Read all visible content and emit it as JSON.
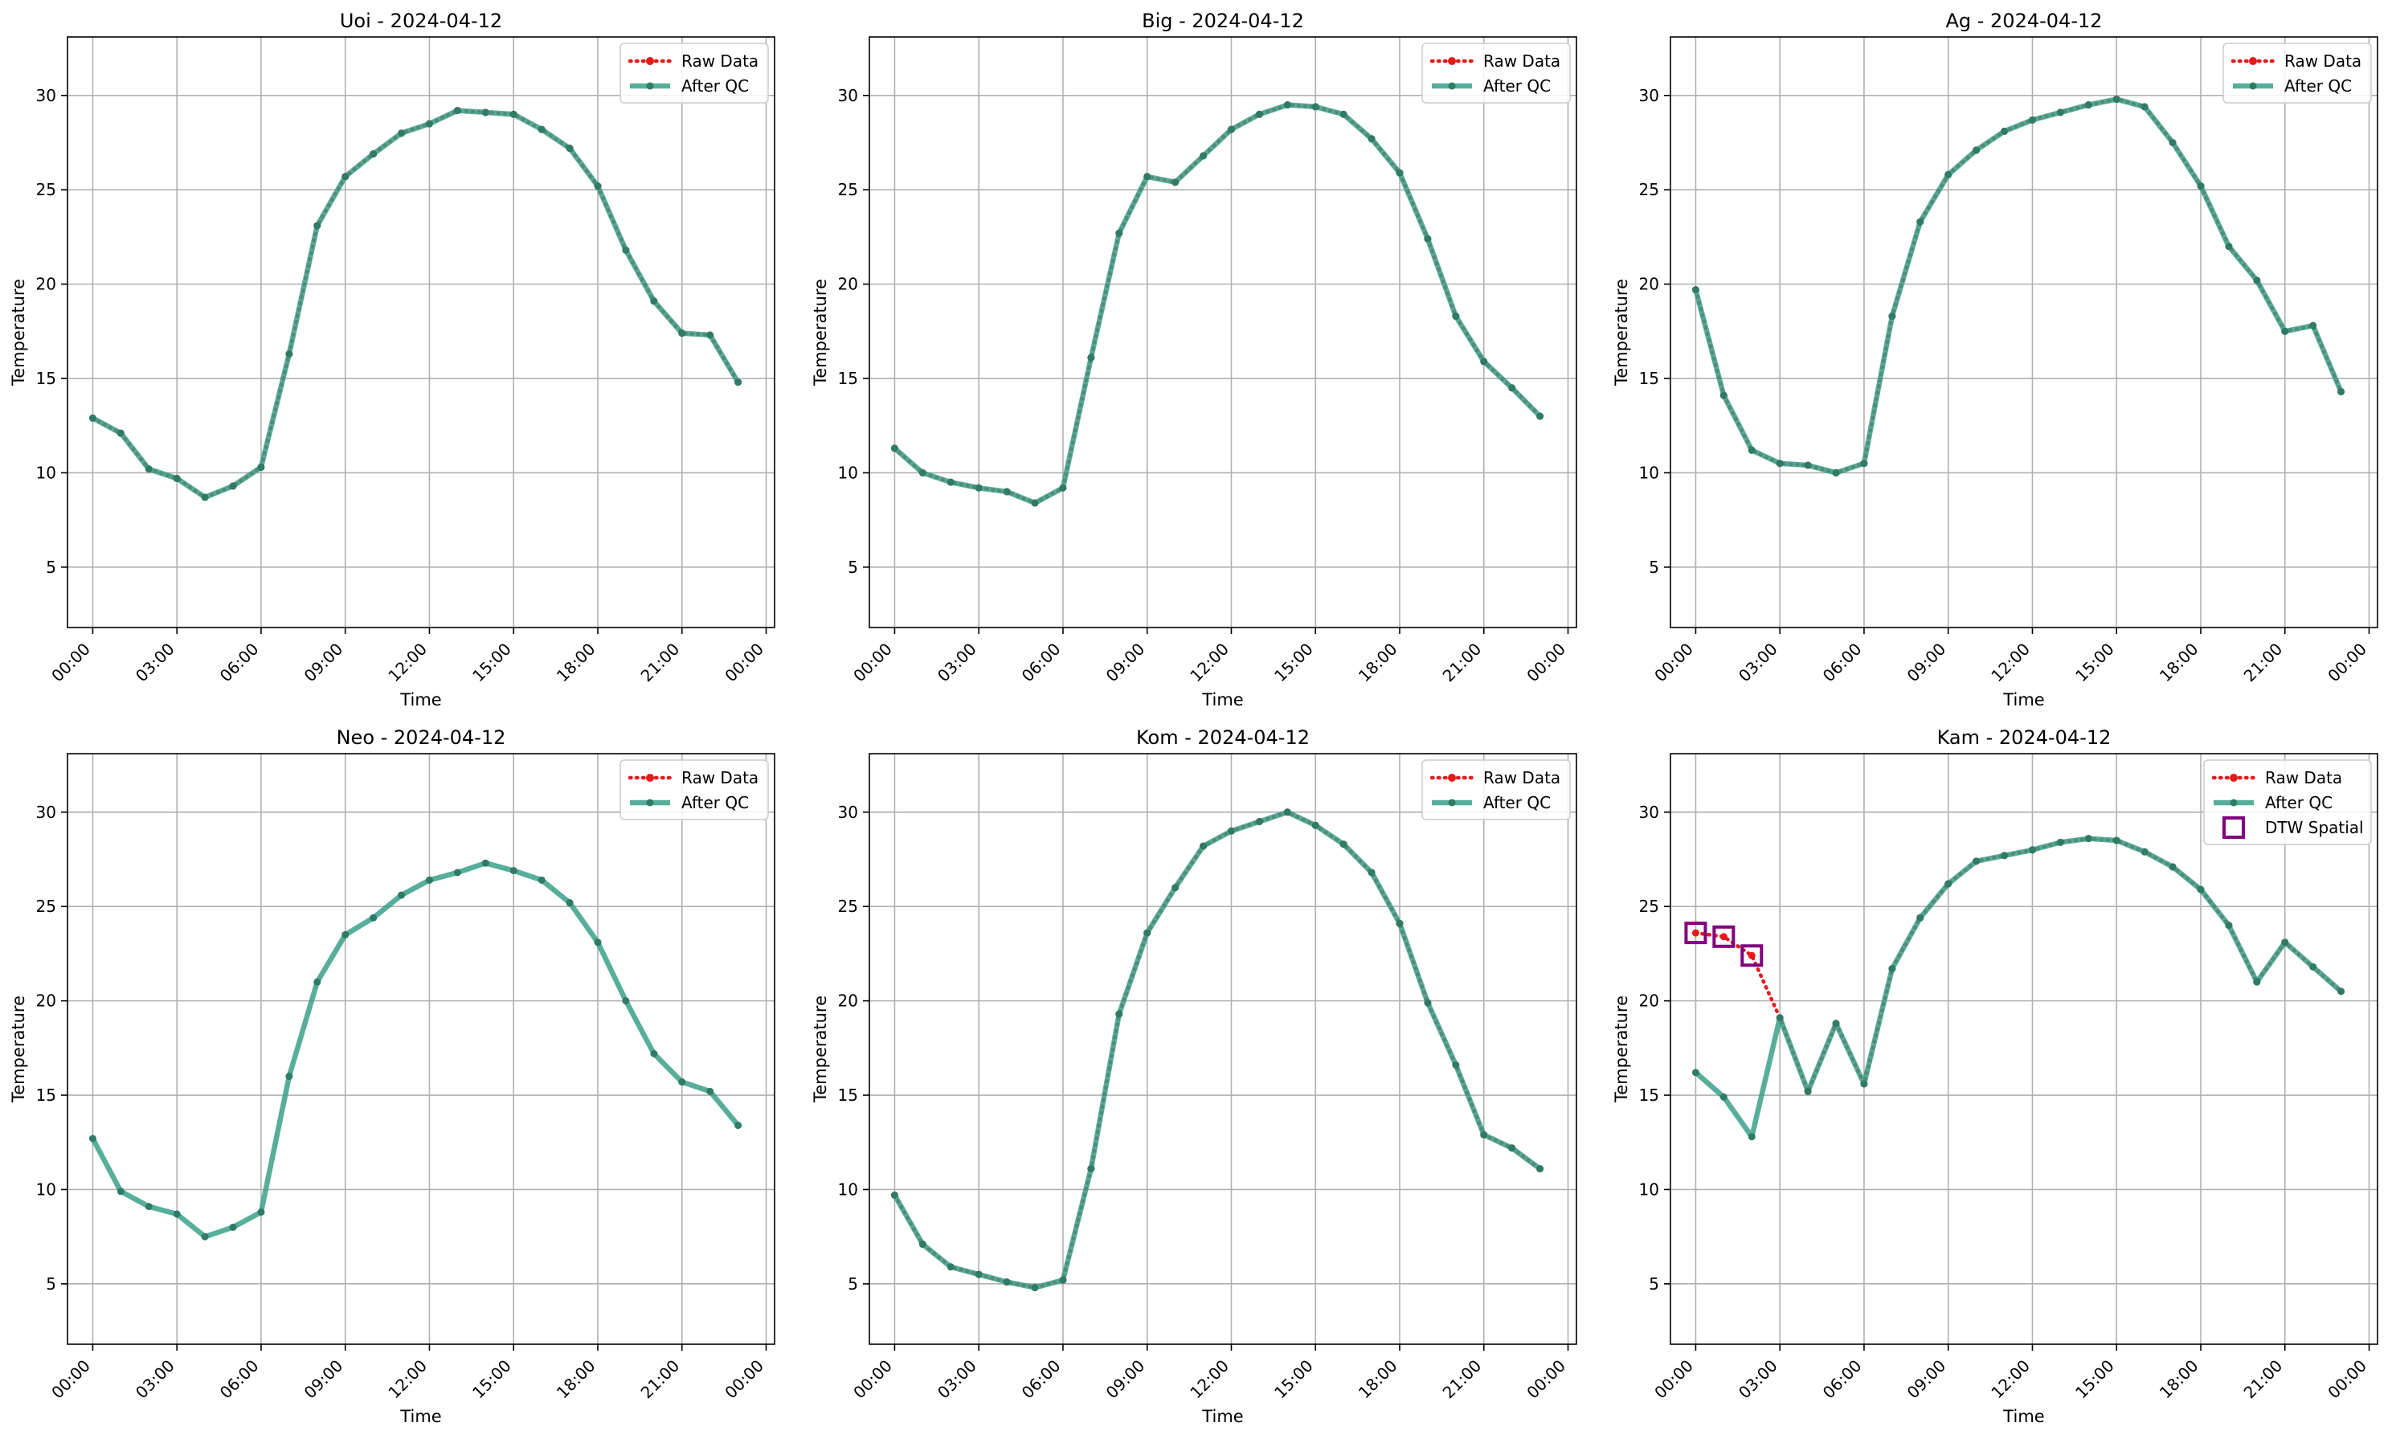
{
  "figure": {
    "x_tick_labels": [
      "00:00",
      "03:00",
      "06:00",
      "09:00",
      "12:00",
      "15:00",
      "18:00",
      "21:00",
      "00:00"
    ],
    "y_tick_labels": [
      "5",
      "10",
      "15",
      "20",
      "25",
      "30"
    ],
    "colors": {
      "raw": "#e41a1c",
      "qc": "#3aa08a",
      "qc_marker": "#2e7b66",
      "dtw": "#800080",
      "grid": "#b0b0b0"
    }
  },
  "chart_data": [
    {
      "type": "line",
      "title": "Uoi - 2024-04-12",
      "xlabel": "Time",
      "ylabel": "Temperature",
      "xlim": [
        "2024-04-11T23:06",
        "2024-04-13T00:18"
      ],
      "ylim": [
        1.8,
        33.1
      ],
      "x_hours": [
        0,
        1,
        2,
        3,
        4,
        5,
        6,
        7,
        8,
        9,
        10,
        11,
        12,
        13,
        14,
        15,
        16,
        17,
        18,
        19,
        20,
        21,
        22,
        23
      ],
      "grid": true,
      "legend": "top-right",
      "legend_entries": [
        "Raw Data",
        "After QC"
      ],
      "series": [
        {
          "name": "Raw Data",
          "style": "dotted",
          "values": [
            12.9,
            12.1,
            10.2,
            9.7,
            8.7,
            9.3,
            10.3,
            16.3,
            23.1,
            25.7,
            26.9,
            28.0,
            28.5,
            29.2,
            29.1,
            29.0,
            28.2,
            27.2,
            25.2,
            21.8,
            19.1,
            17.4,
            17.3,
            14.8
          ]
        },
        {
          "name": "After QC",
          "style": "solid",
          "values": [
            12.9,
            12.1,
            10.2,
            9.7,
            8.7,
            9.3,
            10.3,
            16.3,
            23.1,
            25.7,
            26.9,
            28.0,
            28.5,
            29.2,
            29.1,
            29.0,
            28.2,
            27.2,
            25.2,
            21.8,
            19.1,
            17.4,
            17.3,
            14.8
          ]
        }
      ],
      "dtw_points": []
    },
    {
      "type": "line",
      "title": "Big - 2024-04-12",
      "xlabel": "Time",
      "ylabel": "Temperature",
      "xlim": [
        "2024-04-11T23:06",
        "2024-04-13T00:18"
      ],
      "ylim": [
        1.8,
        33.1
      ],
      "x_hours": [
        0,
        1,
        2,
        3,
        4,
        5,
        6,
        7,
        8,
        9,
        10,
        11,
        12,
        13,
        14,
        15,
        16,
        17,
        18,
        19,
        20,
        21,
        22,
        23
      ],
      "grid": true,
      "legend": "top-right",
      "legend_entries": [
        "Raw Data",
        "After QC"
      ],
      "series": [
        {
          "name": "Raw Data",
          "style": "dotted",
          "values": [
            11.3,
            10.0,
            9.5,
            9.2,
            9.0,
            8.4,
            9.2,
            16.1,
            22.7,
            25.7,
            25.4,
            26.8,
            28.2,
            29.0,
            29.5,
            29.4,
            29.0,
            27.7,
            25.9,
            22.4,
            18.3,
            15.9,
            14.5,
            13.0
          ]
        },
        {
          "name": "After QC",
          "style": "solid",
          "values": [
            11.3,
            10.0,
            9.5,
            9.2,
            9.0,
            8.4,
            9.2,
            16.1,
            22.7,
            25.7,
            25.4,
            26.8,
            28.2,
            29.0,
            29.5,
            29.4,
            29.0,
            27.7,
            25.9,
            22.4,
            18.3,
            15.9,
            14.5,
            13.0
          ]
        }
      ],
      "dtw_points": []
    },
    {
      "type": "line",
      "title": "Ag - 2024-04-12",
      "xlabel": "Time",
      "ylabel": "Temperature",
      "xlim": [
        "2024-04-11T23:06",
        "2024-04-13T00:18"
      ],
      "ylim": [
        1.8,
        33.1
      ],
      "x_hours": [
        0,
        1,
        2,
        3,
        4,
        5,
        6,
        7,
        8,
        9,
        10,
        11,
        12,
        13,
        14,
        15,
        16,
        17,
        18,
        19,
        20,
        21,
        22,
        23
      ],
      "grid": true,
      "legend": "top-right",
      "legend_entries": [
        "Raw Data",
        "After QC"
      ],
      "series": [
        {
          "name": "Raw Data",
          "style": "dotted",
          "values": [
            19.7,
            14.1,
            11.2,
            10.5,
            10.4,
            10.0,
            10.5,
            18.3,
            23.3,
            25.8,
            27.1,
            28.1,
            28.7,
            29.1,
            29.5,
            29.8,
            29.4,
            27.5,
            25.2,
            22.0,
            20.2,
            17.5,
            17.8,
            14.3
          ]
        },
        {
          "name": "After QC",
          "style": "solid",
          "values": [
            19.7,
            14.1,
            11.2,
            10.5,
            10.4,
            10.0,
            10.5,
            18.3,
            23.3,
            25.8,
            27.1,
            28.1,
            28.7,
            29.1,
            29.5,
            29.8,
            29.4,
            27.5,
            25.2,
            22.0,
            20.2,
            17.5,
            17.8,
            14.3
          ]
        }
      ],
      "dtw_points": []
    },
    {
      "type": "line",
      "title": "Neo - 2024-04-12",
      "xlabel": "Time",
      "ylabel": "Temperature",
      "xlim": [
        "2024-04-11T23:06",
        "2024-04-13T00:18"
      ],
      "ylim": [
        1.8,
        33.1
      ],
      "x_hours": [
        0,
        1,
        2,
        3,
        4,
        5,
        6,
        7,
        8,
        9,
        10,
        11,
        12,
        13,
        14,
        15,
        16,
        17,
        18,
        19,
        20,
        21,
        22,
        23
      ],
      "grid": true,
      "legend": "top-right",
      "legend_entries": [
        "Raw Data",
        "After QC"
      ],
      "series": [
        {
          "name": "Raw Data",
          "style": "dotted",
          "values": []
        },
        {
          "name": "After QC",
          "style": "solid",
          "values": [
            12.7,
            9.9,
            9.1,
            8.7,
            7.5,
            8.0,
            8.8,
            16.0,
            21.0,
            23.5,
            24.4,
            25.6,
            26.4,
            26.8,
            27.3,
            26.9,
            26.4,
            25.2,
            23.1,
            20.0,
            17.2,
            15.7,
            15.2,
            13.4
          ]
        }
      ],
      "dtw_points": []
    },
    {
      "type": "line",
      "title": "Kom - 2024-04-12",
      "xlabel": "Time",
      "ylabel": "Temperature",
      "xlim": [
        "2024-04-11T23:06",
        "2024-04-13T00:18"
      ],
      "ylim": [
        1.8,
        33.1
      ],
      "x_hours": [
        0,
        1,
        2,
        3,
        4,
        5,
        6,
        7,
        8,
        9,
        10,
        11,
        12,
        13,
        14,
        15,
        16,
        17,
        18,
        19,
        20,
        21,
        22,
        23
      ],
      "grid": true,
      "legend": "top-right",
      "legend_entries": [
        "Raw Data",
        "After QC"
      ],
      "series": [
        {
          "name": "Raw Data",
          "style": "dotted",
          "values": [
            9.7,
            7.1,
            5.9,
            5.5,
            5.1,
            4.8,
            5.2,
            11.1,
            19.3,
            23.6,
            26.0,
            28.2,
            29.0,
            29.5,
            30.0,
            29.3,
            28.3,
            26.8,
            24.1,
            19.9,
            16.6,
            12.9,
            12.2,
            11.1
          ]
        },
        {
          "name": "After QC",
          "style": "solid",
          "values": [
            9.7,
            7.1,
            5.9,
            5.5,
            5.1,
            4.8,
            5.2,
            11.1,
            19.3,
            23.6,
            26.0,
            28.2,
            29.0,
            29.5,
            30.0,
            29.3,
            28.3,
            26.8,
            24.1,
            19.9,
            16.6,
            12.9,
            12.2,
            11.1
          ]
        }
      ],
      "dtw_points": []
    },
    {
      "type": "line",
      "title": "Kam - 2024-04-12",
      "xlabel": "Time",
      "ylabel": "Temperature",
      "xlim": [
        "2024-04-11T23:06",
        "2024-04-13T00:18"
      ],
      "ylim": [
        1.8,
        33.1
      ],
      "x_hours": [
        0,
        1,
        2,
        3,
        4,
        5,
        6,
        7,
        8,
        9,
        10,
        11,
        12,
        13,
        14,
        15,
        16,
        17,
        18,
        19,
        20,
        21,
        22,
        23
      ],
      "grid": true,
      "legend": "top-right",
      "legend_entries": [
        "Raw Data",
        "After QC",
        "DTW Spatial"
      ],
      "series": [
        {
          "name": "Raw Data",
          "style": "dotted",
          "values": [
            23.6,
            23.4,
            22.4,
            19.1,
            15.2,
            18.8,
            15.6,
            21.7,
            24.4,
            26.2,
            27.4,
            27.7,
            28.0,
            28.4,
            28.6,
            28.5,
            27.9,
            27.1,
            25.9,
            24.0,
            21.0,
            23.1,
            21.8,
            20.5
          ]
        },
        {
          "name": "After QC",
          "style": "solid",
          "values": [
            16.2,
            14.9,
            12.8,
            19.1,
            15.2,
            18.8,
            15.6,
            21.7,
            24.4,
            26.2,
            27.4,
            27.7,
            28.0,
            28.4,
            28.6,
            28.5,
            27.9,
            27.1,
            25.9,
            24.0,
            21.0,
            23.1,
            21.8,
            20.5
          ]
        }
      ],
      "dtw_points": [
        {
          "x_hour": 0,
          "y": 23.6
        },
        {
          "x_hour": 1,
          "y": 23.4
        },
        {
          "x_hour": 2,
          "y": 22.4
        }
      ]
    }
  ]
}
